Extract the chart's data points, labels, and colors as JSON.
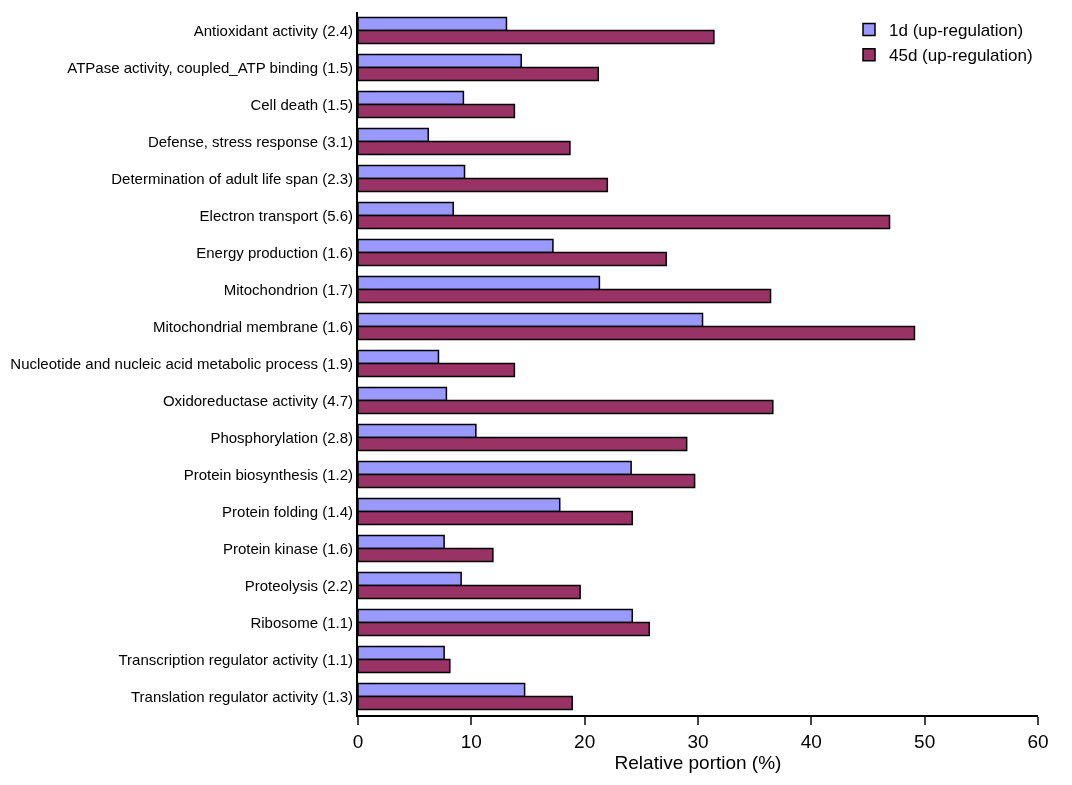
{
  "chart_data": {
    "type": "bar",
    "orientation": "horizontal",
    "xlabel": "Relative portion (%)",
    "categories": [
      "Antioxidant activity (2.4)",
      "ATPase activity, coupled_ATP binding (1.5)",
      "Cell death (1.5)",
      "Defense, stress response (3.1)",
      "Determination of adult life span (2.3)",
      "Electron transport (5.6)",
      "Energy production (1.6)",
      "Mitochondrion (1.7)",
      "Mitochondrial membrane (1.6)",
      "Nucleotide and nucleic acid metabolic process (1.9)",
      "Oxidoreductase activity (4.7)",
      "Phosphorylation (2.8)",
      "Protein biosynthesis (1.2)",
      "Protein folding (1.4)",
      "Protein kinase (1.6)",
      "Proteolysis (2.2)",
      "Ribosome (1.1)",
      "Transcription regulator activity (1.1)",
      "Translation regulator activity (1.3)"
    ],
    "series": [
      {
        "name": "1d (up-regulation)",
        "color": "#9999ff",
        "values": [
          13.1,
          14.4,
          9.3,
          6.2,
          9.4,
          8.4,
          17.2,
          21.3,
          30.4,
          7.1,
          7.8,
          10.4,
          24.1,
          17.8,
          7.6,
          9.1,
          24.2,
          7.6,
          14.7
        ]
      },
      {
        "name": "45d (up-regulation)",
        "color": "#993366",
        "values": [
          31.4,
          21.2,
          13.8,
          18.7,
          22.0,
          46.9,
          27.2,
          36.4,
          49.1,
          13.8,
          36.6,
          29.0,
          29.7,
          24.2,
          11.9,
          19.6,
          25.7,
          8.1,
          18.9
        ]
      }
    ],
    "xlim": [
      0,
      60
    ],
    "xticks": [
      0,
      10,
      20,
      30,
      40,
      50,
      60
    ],
    "legend": "top right"
  }
}
